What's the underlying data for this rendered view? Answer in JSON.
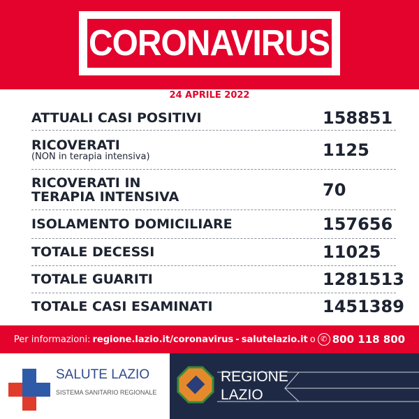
{
  "header": {
    "title": "CORONAVIRUS"
  },
  "date": "24 APRILE 2022",
  "rows": [
    {
      "label": "ATTUALI CASI POSITIVI",
      "value": "158851"
    },
    {
      "label": "RICOVERATI",
      "sublabel": "(NON in terapia intensiva)",
      "value": "1125"
    },
    {
      "label": "RICOVERATI IN",
      "label2": "TERAPIA INTENSIVA",
      "value": "70"
    },
    {
      "label": "ISOLAMENTO DOMICILIARE",
      "value": "157656"
    },
    {
      "label": "TOTALE DECESSI",
      "value": "11025"
    },
    {
      "label": "TOTALE GUARITI",
      "value": "1281513"
    },
    {
      "label": "TOTALE CASI ESAMINATI",
      "value": "1451389"
    }
  ],
  "info": {
    "prefix": "Per informazioni:",
    "link1": "regione.lazio.it/coronavirus",
    "sep": "-",
    "link2": "salutelazio.it",
    "or": "o",
    "phone_icon": "phone-icon",
    "phone": "800 118 800"
  },
  "footer": {
    "salute_title": "SALUTE LAZIO",
    "salute_sub": "SISTEMA SANITARIO REGIONALE",
    "regione_line1": "REGIONE",
    "regione_line2": "LAZIO"
  },
  "colors": {
    "red": "#e3032d",
    "navy": "#1e2a45",
    "blue": "#2f4a8c"
  }
}
